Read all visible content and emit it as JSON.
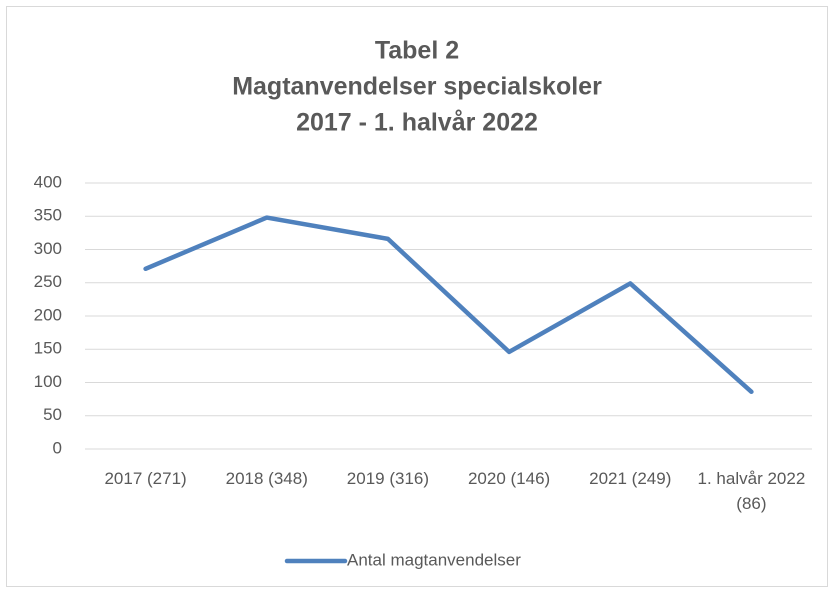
{
  "chart_data": {
    "type": "line",
    "title": [
      "Tabel 2",
      "Magtanvendelser specialskoler",
      "2017 - 1. halvår 2022"
    ],
    "categories": [
      "2017 (271)",
      "2018 (348)",
      "2019 (316)",
      "2020 (146)",
      "2021 (249)",
      "1. halvår 2022 (86)"
    ],
    "series": [
      {
        "name": "Antal magtanvendelser",
        "color": "#4f81bd",
        "values": [
          271,
          348,
          316,
          146,
          249,
          86
        ]
      }
    ],
    "ylim": [
      0,
      400
    ],
    "yticks": [
      0,
      50,
      100,
      150,
      200,
      250,
      300,
      350,
      400
    ],
    "grid": true,
    "legend": "bottom"
  }
}
